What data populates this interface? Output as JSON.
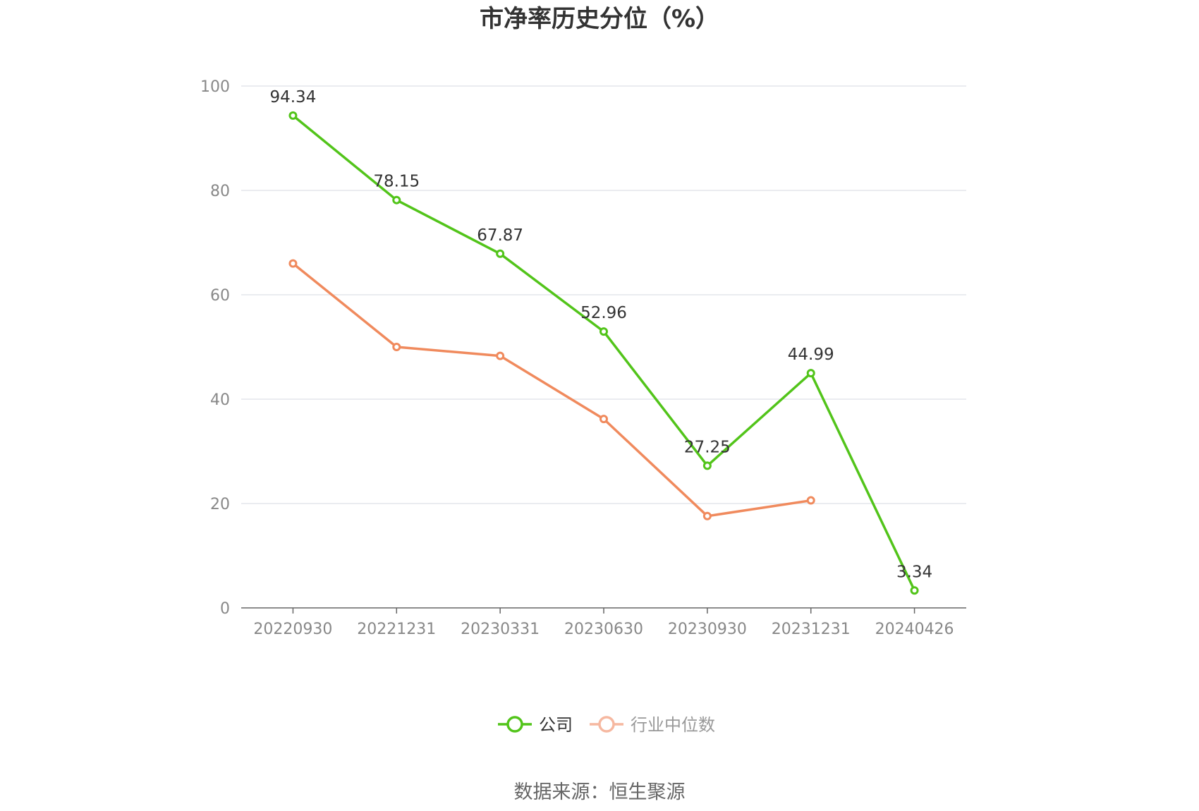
{
  "chart_data": {
    "type": "line",
    "title": "市净率历史分位（%）",
    "categories": [
      "20220930",
      "20221231",
      "20230331",
      "20230630",
      "20230930",
      "20231231",
      "20240426"
    ],
    "ylim": [
      0,
      100
    ],
    "yticks": [
      0,
      20,
      40,
      60,
      80,
      100
    ],
    "grid": true,
    "legend_position": "bottom-center",
    "series": [
      {
        "name": "公司",
        "color": "#52c41a",
        "values": [
          94.34,
          78.15,
          67.87,
          52.96,
          27.25,
          44.99,
          3.34
        ],
        "data_labels": [
          "94.34",
          "78.15",
          "67.87",
          "52.96",
          "27.25",
          "44.99",
          "3.34"
        ]
      },
      {
        "name": "行业中位数",
        "color": "#f08a5d",
        "legend_color": "#f6b8a0",
        "values": [
          66.0,
          50.0,
          48.3,
          36.2,
          17.6,
          20.6,
          null
        ]
      }
    ]
  },
  "footer": {
    "source": "数据来源：恒生聚源"
  },
  "colors": {
    "axis": "#666666",
    "grid": "#e3e6ec",
    "tick_text": "#888888",
    "legend_inactive_text": "#999999"
  }
}
